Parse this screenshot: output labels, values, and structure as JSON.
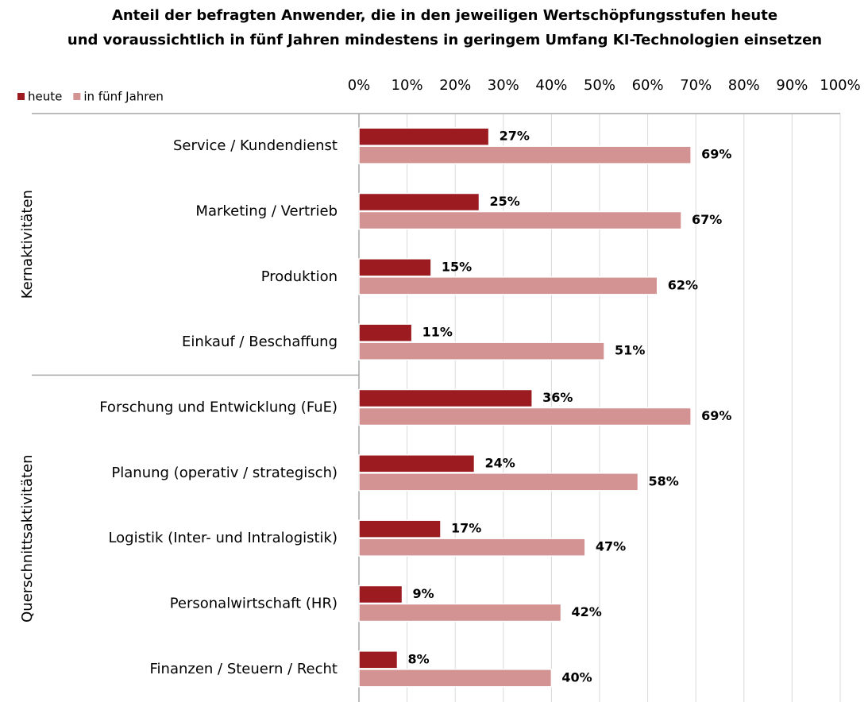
{
  "chart_data": {
    "type": "hbar",
    "title": [
      "Anteil der befragten Anwender, die in den jeweiligen Wertschöpfungsstufen heute",
      "und voraussichtlich in fünf Jahren mindestens in geringem Umfang KI-Technologien einsetzen"
    ],
    "categories": [
      "Service / Kundendienst",
      "Marketing / Vertrieb",
      "Produktion",
      "Einkauf / Beschaffung",
      "Forschung und Entwicklung (FuE)",
      "Planung (operativ / strategisch)",
      "Logistik (Inter- und Intralogistik)",
      "Personalwirtschaft (HR)",
      "Finanzen / Steuern / Recht"
    ],
    "category_groups": [
      "Kernaktivitäten",
      "Kernaktivitäten",
      "Kernaktivitäten",
      "Kernaktivitäten",
      "Querschnittsaktivitäten",
      "Querschnittsaktivitäten",
      "Querschnittsaktivitäten",
      "Querschnittsaktivitäten",
      "Querschnittsaktivitäten"
    ],
    "series": [
      {
        "name": "heute",
        "color": "#9b1b20",
        "values": [
          27,
          25,
          15,
          11,
          36,
          24,
          17,
          9,
          8
        ],
        "value_labels": [
          "27%",
          "25%",
          "15%",
          "11%",
          "36%",
          "24%",
          "17%",
          "9%",
          "8%"
        ]
      },
      {
        "name": "in fünf Jahren",
        "color": "#d49393",
        "values": [
          69,
          67,
          62,
          51,
          69,
          58,
          47,
          42,
          40
        ],
        "value_labels": [
          "69%",
          "67%",
          "62%",
          "51%",
          "69%",
          "58%",
          "47%",
          "42%",
          "40%"
        ]
      }
    ],
    "xlim": [
      0,
      100
    ],
    "xticks": [
      {
        "value": 0,
        "label": "0%"
      },
      {
        "value": 10,
        "label": "10%"
      },
      {
        "value": 20,
        "label": "20%"
      },
      {
        "value": 30,
        "label": "30%"
      },
      {
        "value": 40,
        "label": "40%"
      },
      {
        "value": 50,
        "label": "50%"
      },
      {
        "value": 60,
        "label": "60%"
      },
      {
        "value": 70,
        "label": "70%"
      },
      {
        "value": 80,
        "label": "80%"
      },
      {
        "value": 90,
        "label": "90%"
      },
      {
        "value": 100,
        "label": "100%"
      }
    ],
    "grid": true,
    "legend": "top-left"
  }
}
